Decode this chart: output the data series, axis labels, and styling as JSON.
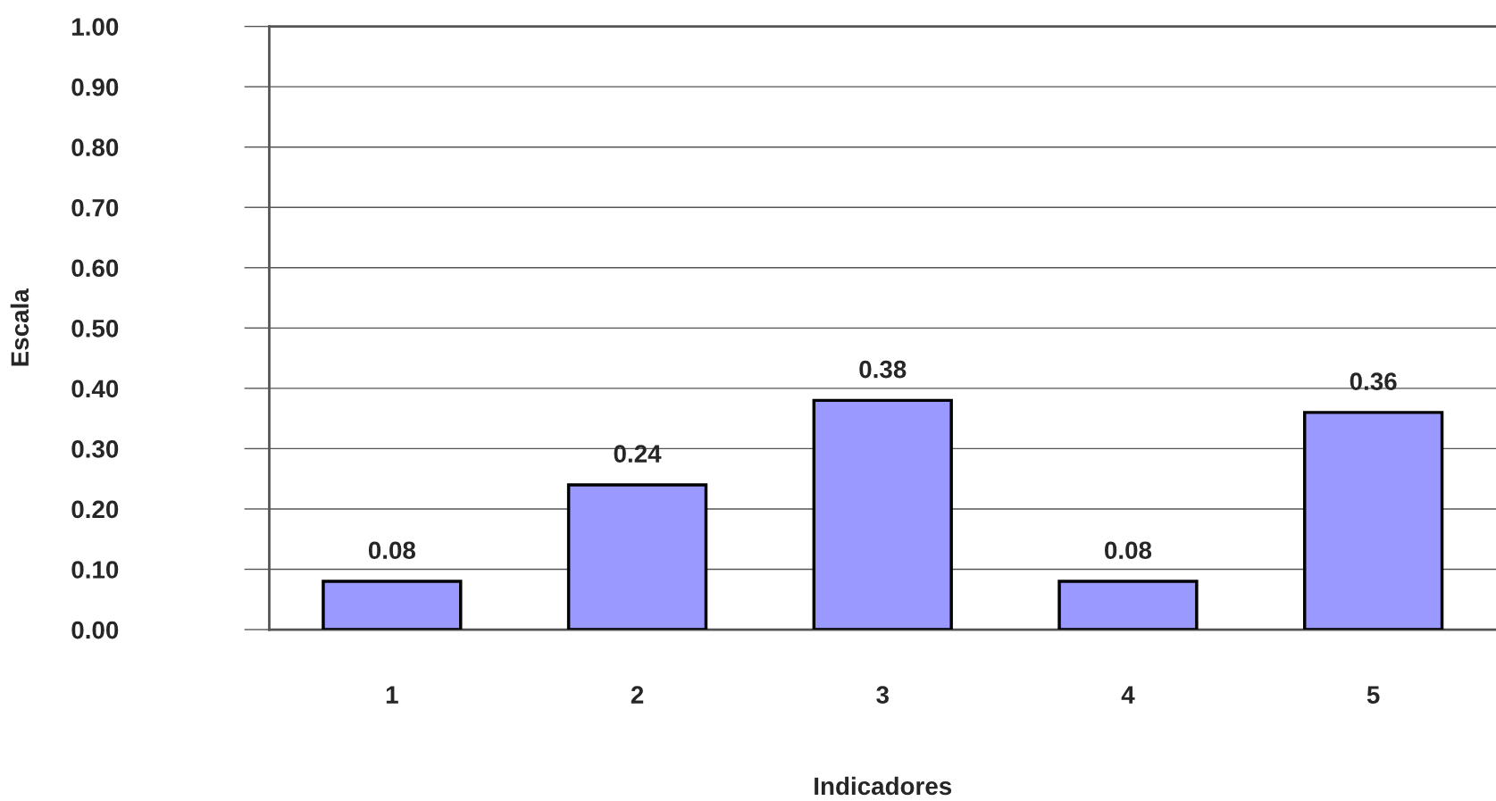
{
  "chart_data": {
    "type": "bar",
    "xlabel": "Indicadores",
    "ylabel": "Escala",
    "categories": [
      "1",
      "2",
      "3",
      "4",
      "5"
    ],
    "values": [
      0.08,
      0.24,
      0.38,
      0.08,
      0.36
    ],
    "color": "#9999ff",
    "ylim": [
      0,
      1
    ],
    "yticks": [
      {
        "value": 0,
        "label": "0.00"
      },
      {
        "value": 0.1,
        "label": "0.10"
      },
      {
        "value": 0.2,
        "label": "0.20"
      },
      {
        "value": 0.3,
        "label": "0.30"
      },
      {
        "value": 0.4,
        "label": "0.40"
      },
      {
        "value": 0.5,
        "label": "0.50"
      },
      {
        "value": 0.6,
        "label": "0.60"
      },
      {
        "value": 0.7,
        "label": "0.70"
      },
      {
        "value": 0.8,
        "label": "0.80"
      },
      {
        "value": 0.9,
        "label": "0.90"
      },
      {
        "value": 1,
        "label": "1.00"
      }
    ],
    "grid": "y",
    "data_labels": true
  }
}
